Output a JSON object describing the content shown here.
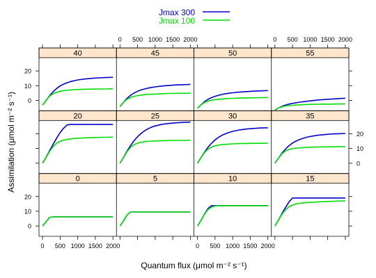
{
  "chart_data": {
    "type": "line",
    "layout": "trellis 4x3",
    "xlabel": "Quantum flux (μmol m⁻² s⁻¹)",
    "ylabel": "Assimilation (μmol m⁻² s⁻¹)",
    "xlim": [
      -100,
      2100
    ],
    "ylim": [
      -7,
      29
    ],
    "x_ticks": [
      0,
      500,
      1000,
      1500,
      2000
    ],
    "y_ticks": [
      0,
      10,
      20
    ],
    "legend": {
      "position": "top",
      "entries": [
        "Jmax 300",
        "Jmax 100"
      ]
    },
    "series_style": [
      {
        "name": "Jmax 300",
        "color": "#0000cc"
      },
      {
        "name": "Jmax 100",
        "color": "#00dd00"
      }
    ],
    "x": [
      0,
      100,
      200,
      300,
      400,
      500,
      600,
      700,
      800,
      900,
      1000,
      1200,
      1400,
      1600,
      1800,
      2000
    ],
    "panels": [
      {
        "label": "0",
        "series": [
          {
            "name": "Jmax 300",
            "values": [
              0,
              2.9,
              5.8,
              6.2,
              6.2,
              6.2,
              6.2,
              6.2,
              6.2,
              6.2,
              6.2,
              6.2,
              6.2,
              6.2,
              6.2,
              6.2
            ]
          },
          {
            "name": "Jmax 100",
            "values": [
              0,
              2.9,
              5.8,
              6.2,
              6.2,
              6.2,
              6.2,
              6.2,
              6.2,
              6.2,
              6.2,
              6.2,
              6.2,
              6.2,
              6.2,
              6.2
            ]
          }
        ]
      },
      {
        "label": "5",
        "series": [
          {
            "name": "Jmax 300",
            "values": [
              0,
              3.5,
              7.5,
              9.5,
              9.5,
              9.5,
              9.5,
              9.5,
              9.5,
              9.5,
              9.5,
              9.5,
              9.5,
              9.5,
              9.5,
              9.5
            ]
          },
          {
            "name": "Jmax 100",
            "values": [
              0,
              3.5,
              7.5,
              9.5,
              9.5,
              9.5,
              9.5,
              9.5,
              9.5,
              9.5,
              9.5,
              9.5,
              9.5,
              9.5,
              9.5,
              9.5
            ]
          }
        ]
      },
      {
        "label": "10",
        "series": [
          {
            "name": "Jmax 300",
            "values": [
              0,
              3.8,
              8.2,
              11.8,
              13.8,
              13.8,
              13.8,
              13.8,
              13.8,
              13.8,
              13.8,
              13.8,
              13.8,
              13.8,
              13.8,
              13.8
            ]
          },
          {
            "name": "Jmax 100",
            "values": [
              0,
              3.8,
              8.0,
              11.2,
              12.8,
              13.5,
              13.8,
              13.8,
              13.8,
              13.8,
              13.8,
              13.8,
              13.8,
              13.8,
              13.8,
              13.8
            ]
          }
        ]
      },
      {
        "label": "15",
        "series": [
          {
            "name": "Jmax 300",
            "values": [
              0,
              4.0,
              8.5,
              12.5,
              16.3,
              19.0,
              19.0,
              19.0,
              19.0,
              19.0,
              19.0,
              19.0,
              19.0,
              19.0,
              19.0,
              19.0
            ]
          },
          {
            "name": "Jmax 100",
            "values": [
              0,
              4.0,
              8.0,
              11.0,
              13.0,
              14.2,
              15.0,
              15.4,
              15.7,
              15.9,
              16.0,
              16.3,
              16.5,
              16.7,
              16.9,
              17.0
            ]
          }
        ]
      },
      {
        "label": "20",
        "series": [
          {
            "name": "Jmax 300",
            "values": [
              0,
              4.0,
              8.5,
              12.8,
              17.0,
              20.8,
              23.8,
              26.0,
              26.3,
              26.3,
              26.3,
              26.3,
              26.3,
              26.3,
              26.3,
              26.3
            ]
          },
          {
            "name": "Jmax 100",
            "values": [
              0,
              4.0,
              8.0,
              11.3,
              13.5,
              14.8,
              15.6,
              16.1,
              16.5,
              16.8,
              17.0,
              17.2,
              17.4,
              17.5,
              17.6,
              17.7
            ]
          }
        ]
      },
      {
        "label": "25",
        "series": [
          {
            "name": "Jmax 300",
            "values": [
              0,
              4.0,
              8.2,
              12.0,
              15.3,
              18.0,
              20.2,
              22.0,
              23.4,
              24.5,
              25.3,
              26.4,
              27.0,
              27.4,
              27.7,
              27.9
            ]
          },
          {
            "name": "Jmax 100",
            "values": [
              0,
              4.0,
              7.8,
              10.8,
              12.6,
              13.6,
              14.2,
              14.6,
              14.8,
              15.0,
              15.1,
              15.3,
              15.4,
              15.5,
              15.5,
              15.6
            ]
          }
        ]
      },
      {
        "label": "30",
        "series": [
          {
            "name": "Jmax 300",
            "values": [
              0,
              3.8,
              7.5,
              10.8,
              13.6,
              15.8,
              17.6,
              19.0,
              20.0,
              20.9,
              21.6,
              22.6,
              23.2,
              23.6,
              23.9,
              24.0
            ]
          },
          {
            "name": "Jmax 100",
            "values": [
              0,
              3.8,
              7.2,
              9.6,
              11.0,
              11.8,
              12.3,
              12.6,
              12.8,
              13.0,
              13.1,
              13.3,
              13.4,
              13.5,
              13.5,
              13.6
            ]
          }
        ]
      },
      {
        "label": "35",
        "series": [
          {
            "name": "Jmax 300",
            "values": [
              0,
              3.4,
              6.8,
              9.6,
              11.9,
              13.7,
              15.0,
              16.1,
              16.9,
              17.6,
              18.1,
              18.9,
              19.4,
              19.8,
              20.0,
              20.2
            ]
          },
          {
            "name": "Jmax 100",
            "values": [
              0,
              3.4,
              6.4,
              8.3,
              9.3,
              9.9,
              10.2,
              10.4,
              10.6,
              10.7,
              10.8,
              11.0,
              11.1,
              11.1,
              11.2,
              11.2
            ]
          }
        ]
      },
      {
        "label": "40",
        "series": [
          {
            "name": "Jmax 300",
            "values": [
              -3.2,
              0.0,
              3.2,
              5.9,
              8.1,
              9.8,
              11.1,
              12.0,
              12.8,
              13.4,
              13.9,
              14.5,
              15.0,
              15.3,
              15.5,
              15.7
            ]
          },
          {
            "name": "Jmax 100",
            "values": [
              -3.2,
              0.0,
              2.9,
              4.6,
              5.6,
              6.2,
              6.6,
              6.9,
              7.1,
              7.3,
              7.4,
              7.6,
              7.7,
              7.8,
              7.8,
              7.9
            ]
          }
        ]
      },
      {
        "label": "45",
        "series": [
          {
            "name": "Jmax 300",
            "values": [
              -4.2,
              -1.3,
              1.4,
              3.5,
              5.0,
              6.2,
              7.1,
              7.8,
              8.4,
              8.8,
              9.2,
              9.8,
              10.2,
              10.5,
              10.7,
              10.9
            ]
          },
          {
            "name": "Jmax 100",
            "values": [
              -4.2,
              -1.3,
              0.8,
              2.0,
              2.8,
              3.3,
              3.6,
              3.9,
              4.1,
              4.2,
              4.3,
              4.5,
              4.7,
              4.8,
              4.8,
              4.9
            ]
          }
        ]
      },
      {
        "label": "50",
        "series": [
          {
            "name": "Jmax 300",
            "values": [
              -5.3,
              -3.0,
              -0.9,
              0.7,
              1.9,
              2.8,
              3.5,
              4.1,
              4.5,
              4.9,
              5.2,
              5.7,
              6.0,
              6.3,
              6.5,
              6.7
            ]
          },
          {
            "name": "Jmax 100",
            "values": [
              -5.3,
              -3.0,
              -1.4,
              -0.5,
              0.1,
              0.5,
              0.8,
              1.0,
              1.2,
              1.3,
              1.4,
              1.6,
              1.7,
              1.8,
              1.9,
              2.0
            ]
          }
        ]
      },
      {
        "label": "55",
        "series": [
          {
            "name": "Jmax 300",
            "values": [
              -6.5,
              -5.1,
              -4.0,
              -3.1,
              -2.5,
              -2.0,
              -1.6,
              -1.2,
              -0.9,
              -0.6,
              -0.3,
              0.2,
              0.6,
              0.9,
              1.2,
              1.5
            ]
          },
          {
            "name": "Jmax 100",
            "values": [
              -6.5,
              -5.1,
              -4.3,
              -3.8,
              -3.5,
              -3.3,
              -3.1,
              -3.0,
              -2.9,
              -2.8,
              -2.7,
              -2.6,
              -2.5,
              -2.5,
              -2.4,
              -2.3
            ]
          }
        ]
      }
    ]
  }
}
